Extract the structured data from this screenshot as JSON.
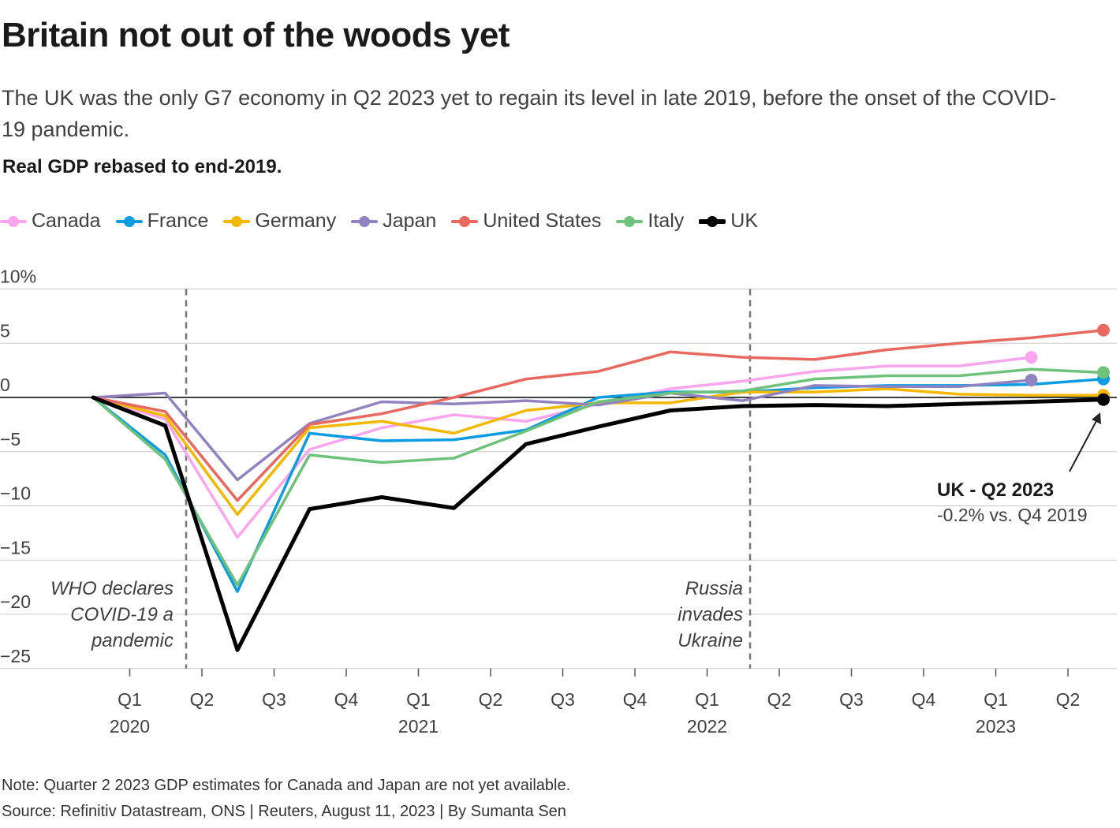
{
  "header": {
    "title": "Britain not out of the woods yet",
    "subtitle": "The UK was the only G7 economy in Q2 2023 yet to regain its level in late 2019, before the onset of the COVID-19 pandemic.",
    "measure": "Real GDP rebased to end-2019."
  },
  "chart_data": {
    "type": "line",
    "title": "Britain not out of the woods yet",
    "ylabel": "Real GDP rebased to end-2019.",
    "ylim": [
      -25,
      10
    ],
    "yticks": [
      10,
      5,
      0,
      -5,
      -10,
      -15,
      -20,
      -25
    ],
    "ytick_labels": [
      "10%",
      "5",
      "0",
      "−5",
      "−10",
      "−15",
      "−20",
      "−25"
    ],
    "x": [
      "Q4 2019",
      "Q1 2020",
      "Q2 2020",
      "Q3 2020",
      "Q4 2020",
      "Q1 2021",
      "Q2 2021",
      "Q3 2021",
      "Q4 2021",
      "Q1 2022",
      "Q2 2022",
      "Q3 2022",
      "Q4 2022",
      "Q1 2023",
      "Q2 2023"
    ],
    "xtick_labels": [
      {
        "quarter": "Q1",
        "year": "2020"
      },
      {
        "quarter": "Q2",
        "year": ""
      },
      {
        "quarter": "Q3",
        "year": ""
      },
      {
        "quarter": "Q4",
        "year": ""
      },
      {
        "quarter": "Q1",
        "year": "2021"
      },
      {
        "quarter": "Q2",
        "year": ""
      },
      {
        "quarter": "Q3",
        "year": ""
      },
      {
        "quarter": "Q4",
        "year": ""
      },
      {
        "quarter": "Q1",
        "year": "2022"
      },
      {
        "quarter": "Q2",
        "year": ""
      },
      {
        "quarter": "Q3",
        "year": ""
      },
      {
        "quarter": "Q4",
        "year": ""
      },
      {
        "quarter": "Q1",
        "year": "2023"
      },
      {
        "quarter": "Q2",
        "year": ""
      }
    ],
    "series": [
      {
        "name": "Canada",
        "color": "#fba5ef",
        "values": [
          0,
          -2.0,
          -12.9,
          -4.8,
          -2.8,
          -1.6,
          -2.2,
          -0.6,
          0.8,
          1.5,
          2.4,
          2.9,
          2.9,
          3.7,
          null
        ]
      },
      {
        "name": "France",
        "color": "#0e9ce0",
        "values": [
          0,
          -5.3,
          -17.9,
          -3.3,
          -4.0,
          -3.9,
          -3.0,
          0.0,
          0.5,
          0.5,
          0.9,
          1.1,
          1.1,
          1.2,
          1.7
        ]
      },
      {
        "name": "Germany",
        "color": "#f3b800",
        "values": [
          0,
          -1.7,
          -10.8,
          -2.8,
          -2.2,
          -3.3,
          -1.2,
          -0.5,
          -0.5,
          0.5,
          0.5,
          0.8,
          0.3,
          0.2,
          0.2
        ]
      },
      {
        "name": "Japan",
        "color": "#9183c0",
        "values": [
          0,
          0.4,
          -7.6,
          -2.4,
          -0.4,
          -0.6,
          -0.3,
          -0.7,
          0.4,
          -0.3,
          1.1,
          1.0,
          1.0,
          1.6,
          null
        ]
      },
      {
        "name": "United States",
        "color": "#e8695f",
        "values": [
          0,
          -1.3,
          -9.5,
          -2.5,
          -1.5,
          0.0,
          1.7,
          2.4,
          4.2,
          3.7,
          3.5,
          4.4,
          5.0,
          5.5,
          6.2
        ]
      },
      {
        "name": "Italy",
        "color": "#6ec27a",
        "values": [
          0,
          -5.7,
          -17.3,
          -5.3,
          -6.0,
          -5.6,
          -3.1,
          -0.4,
          0.4,
          0.6,
          1.7,
          2.0,
          2.0,
          2.6,
          2.3
        ]
      },
      {
        "name": "UK",
        "color": "#000000",
        "values": [
          0,
          -2.6,
          -23.3,
          -10.3,
          -9.2,
          -10.2,
          -4.3,
          -2.7,
          -1.2,
          -0.8,
          -0.7,
          -0.8,
          -0.6,
          -0.4,
          -0.2
        ]
      }
    ],
    "annotations": [
      {
        "id": "who",
        "text": [
          "WHO declares",
          "COVID-19 a",
          "pandemic"
        ]
      },
      {
        "id": "russia",
        "text": [
          "Russia",
          "invades",
          "Ukraine"
        ]
      },
      {
        "id": "uk-callout",
        "title": "UK - Q2 2023",
        "text": "-0.2% vs. Q4 2019"
      }
    ],
    "grid": true,
    "legend_position": "top-left"
  },
  "footer": {
    "note": "Note: Quarter 2 2023 GDP estimates for Canada and Japan are not yet available.",
    "source": "Source: Refinitiv Datastream, ONS | Reuters, August 11, 2023 | By Sumanta Sen"
  }
}
